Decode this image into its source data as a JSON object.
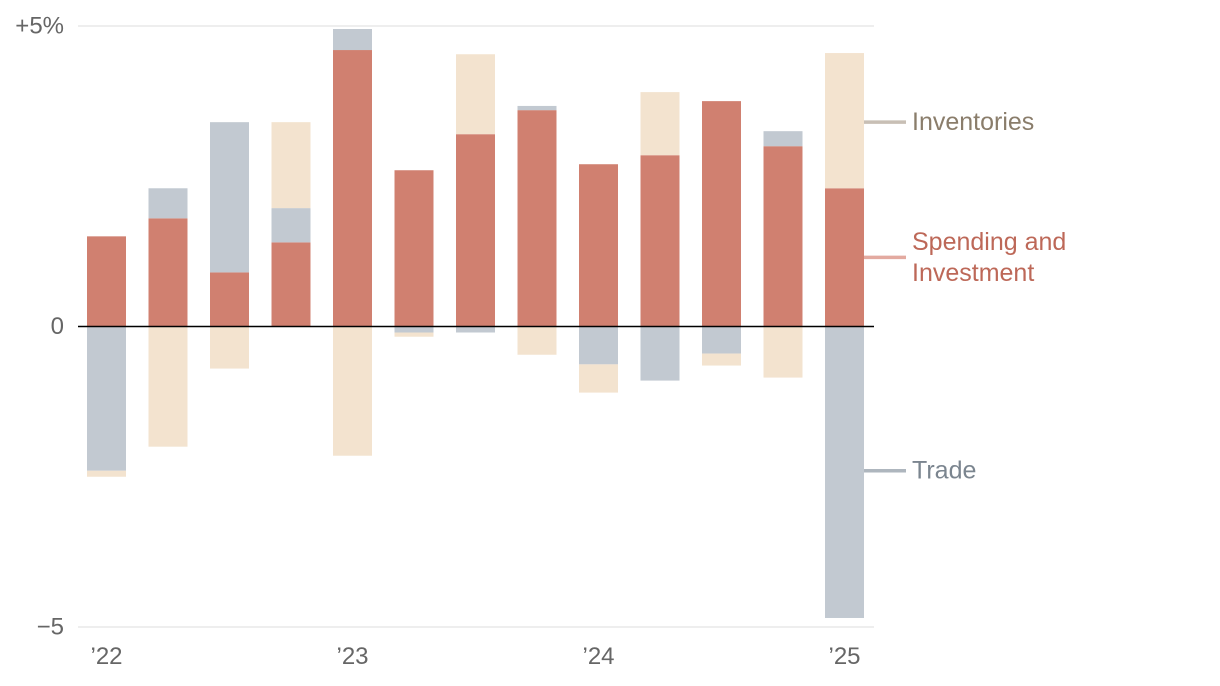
{
  "chart_data": {
    "type": "stacked-bar",
    "title": "",
    "xlabel": "",
    "ylabel": "",
    "ylim": [
      -5,
      5
    ],
    "y_ticks": [
      {
        "value": 5,
        "label": "+5%"
      },
      {
        "value": 0,
        "label": "0"
      },
      {
        "value": -5,
        "label": "−5"
      }
    ],
    "x_ticks": [
      {
        "index": 0,
        "label": "’22"
      },
      {
        "index": 4,
        "label": "’23"
      },
      {
        "index": 8,
        "label": "’24"
      },
      {
        "index": 12,
        "label": "’25"
      }
    ],
    "categories": [
      "2022 Q1",
      "2022 Q2",
      "2022 Q3",
      "2022 Q4",
      "2023 Q1",
      "2023 Q2",
      "2023 Q3",
      "2023 Q4",
      "2024 Q1",
      "2024 Q2",
      "2024 Q3",
      "2024 Q4",
      "2025 Q1"
    ],
    "series": [
      {
        "key": "spending",
        "name": "Spending and Investment",
        "color": "#d08070",
        "values": [
          1.5,
          1.8,
          0.9,
          1.4,
          4.6,
          2.6,
          3.2,
          3.6,
          2.7,
          2.85,
          3.75,
          3.0,
          2.3
        ]
      },
      {
        "key": "trade",
        "name": "Trade",
        "color": "#c2c9d1",
        "values": [
          -2.4,
          0.5,
          2.5,
          0.57,
          0.35,
          -0.1,
          -0.1,
          0.07,
          -0.63,
          -0.9,
          -0.45,
          0.25,
          -4.85
        ]
      },
      {
        "key": "inventories",
        "name": "Inventories",
        "color": "#f3e3cf",
        "values": [
          -0.1,
          -2.0,
          -0.7,
          1.43,
          -2.15,
          -0.07,
          1.33,
          -0.47,
          -0.47,
          1.05,
          -0.2,
          -0.85,
          2.25
        ]
      }
    ],
    "legend": [
      {
        "key": "inventories",
        "lines": [
          "Inventories"
        ],
        "text_color": "#8a7d6b",
        "line_color": "#c8bfb5",
        "anchor_value": 3.4
      },
      {
        "key": "spending",
        "lines": [
          "Spending and",
          "Investment"
        ],
        "text_color": "#bd6858",
        "line_color": "#e3aaa0",
        "anchor_value": 1.15
      },
      {
        "key": "trade",
        "lines": [
          "Trade"
        ],
        "text_color": "#7b858f",
        "line_color": "#aeb6be",
        "anchor_value": -2.4
      }
    ]
  }
}
